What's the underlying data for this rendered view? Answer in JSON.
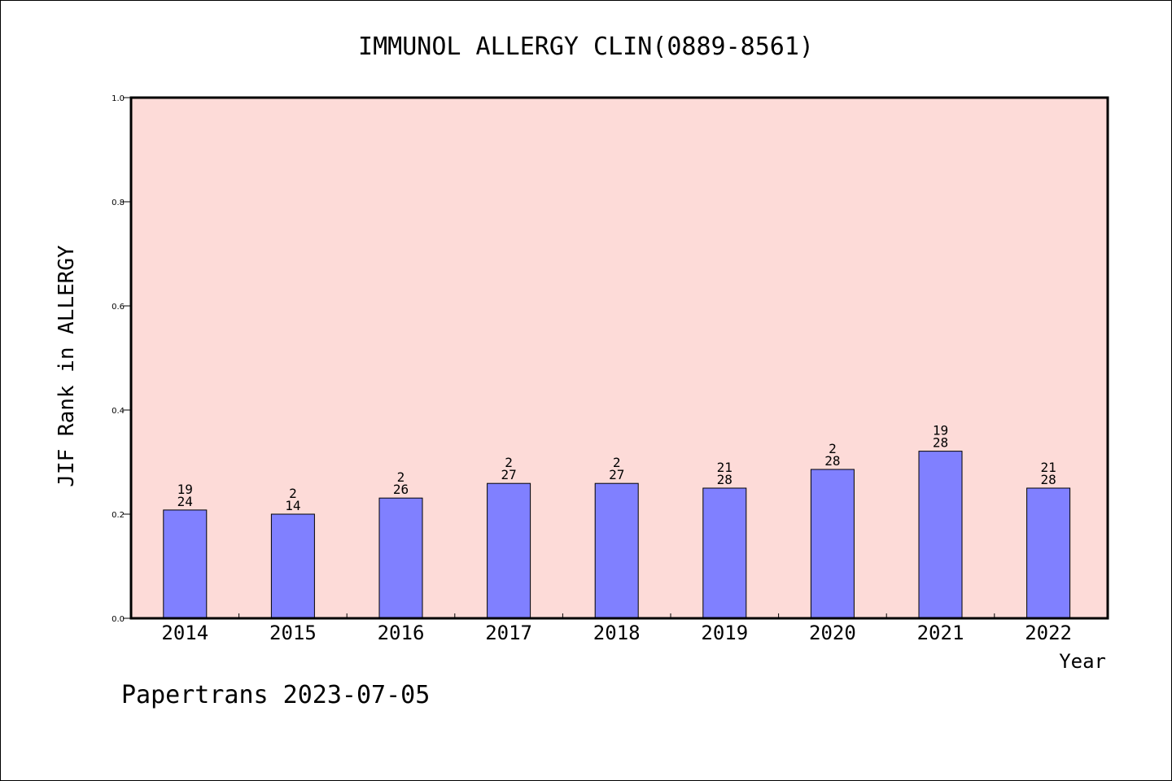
{
  "chart_data": {
    "type": "bar",
    "title": "IMMUNOL ALLERGY CLIN(0889-8561)",
    "xlabel": "Year",
    "ylabel": "JIF Rank in ALLERGY",
    "ylim": [
      0,
      1.0
    ],
    "yticks": [
      "0.0",
      "0.2",
      "0.4",
      "0.6",
      "0.8",
      "1.0"
    ],
    "grid": false,
    "categories": [
      "2014",
      "2015",
      "2016",
      "2017",
      "2018",
      "2019",
      "2020",
      "2021",
      "2022"
    ],
    "values": [
      0.208,
      0.2,
      0.231,
      0.259,
      0.259,
      0.25,
      0.286,
      0.321,
      0.25
    ],
    "labels_top": [
      "19",
      "2",
      "2",
      "2",
      "2",
      "21",
      "2",
      "19",
      "21"
    ],
    "labels_bottom": [
      "24",
      "14",
      "26",
      "27",
      "27",
      "28",
      "28",
      "28",
      "28"
    ],
    "colors": {
      "plot_background": "#fddbd8",
      "bar_fill": "#8080ff",
      "bar_stroke": "#000000"
    }
  },
  "footer": {
    "text": "Papertrans 2023-07-05"
  }
}
